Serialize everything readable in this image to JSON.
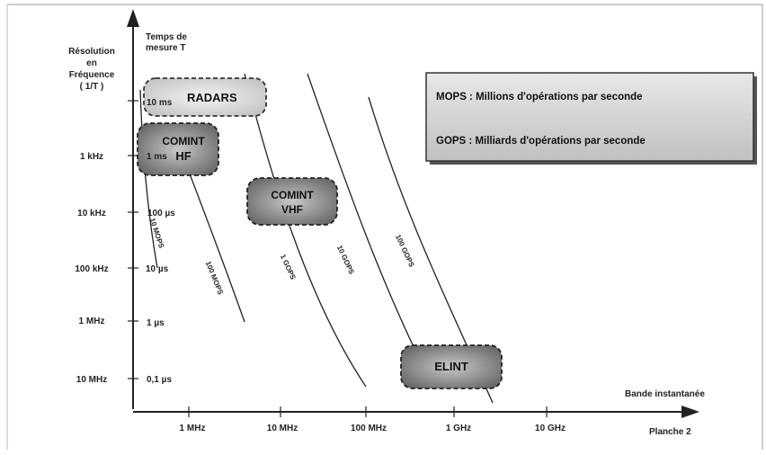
{
  "y_axis": {
    "title_left": [
      "Résolution",
      "en",
      "Fréquence",
      "( 1/T )"
    ],
    "title_right": [
      "Temps de",
      "mesure T"
    ],
    "freq_labels": [
      "1 kHz",
      "10 kHz",
      "100 kHz",
      "1 MHz",
      "10 MHz"
    ],
    "time_labels": [
      "10 ms",
      "1 ms",
      "100 µs",
      "10 µs",
      "1 µs",
      "0,1 µs"
    ]
  },
  "x_axis": {
    "title": "Bande instantanée",
    "tick_labels": [
      "1 MHz",
      "10 MHz",
      "100 MHz",
      "1 GHz",
      "10 GHz"
    ]
  },
  "plate_label": "Planche 2",
  "boxes": {
    "radars": "RADARS",
    "comint_hf": [
      "COMINT",
      "HF"
    ],
    "comint_vhf": [
      "COMINT",
      "VHF"
    ],
    "elint": "ELINT"
  },
  "curves": [
    "10 MOPS",
    "100 MOPS",
    "1 GOPS",
    "10 GOPS",
    "100 GOPS"
  ],
  "legend": {
    "mops": "MOPS :  Millions d'opérations par seconde",
    "gops": "GOPS :  Milliards d'opérations par seconde"
  }
}
